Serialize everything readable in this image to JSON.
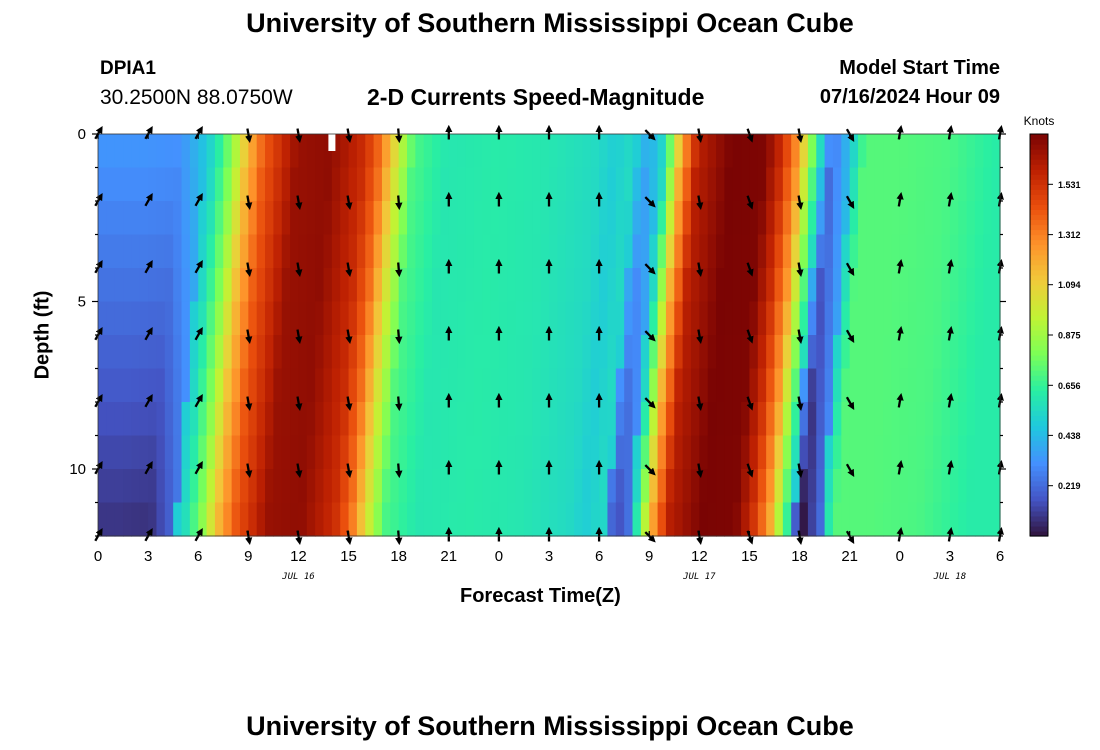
{
  "header": {
    "title": "University of Southern Mississippi Ocean Cube",
    "station_id": "DPIA1",
    "station_coords": "30.2500N  88.0750W",
    "subtitle": "2-D Currents Speed-Magnitude",
    "model_start_label": "Model Start Time",
    "model_start_value": "07/16/2024 Hour 09"
  },
  "footer": {
    "title": "University of Southern Mississippi Ocean Cube"
  },
  "chart_data": {
    "type": "heatmap",
    "title": "2-D Currents Speed-Magnitude",
    "xlabel": "Forecast Time(Z)",
    "ylabel": "Depth (ft)",
    "x_unit": "hours from 2024-07-16 00Z",
    "xlim": [
      0,
      54
    ],
    "ylim": [
      0,
      12
    ],
    "x_tick_values": [
      0,
      3,
      6,
      9,
      12,
      15,
      18,
      21,
      24,
      27,
      30,
      33,
      36,
      39,
      42,
      45,
      48,
      51,
      54
    ],
    "x_tick_labels": [
      "0",
      "3",
      "6",
      "9",
      "12",
      "15",
      "18",
      "21",
      "0",
      "3",
      "6",
      "9",
      "12",
      "15",
      "18",
      "21",
      "0",
      "3",
      "6"
    ],
    "date_labels": [
      {
        "x": 12,
        "text": "JUL 16"
      },
      {
        "x": 36,
        "text": "JUL 17"
      },
      {
        "x": 51,
        "text": "JUL 18"
      }
    ],
    "y_tick_values": [
      0,
      5,
      10
    ],
    "y_tick_labels": [
      "0",
      "5",
      "10"
    ],
    "colorbar": {
      "label": "Knots",
      "min": 0.0,
      "max": 1.75,
      "ticks": [
        0.219,
        0.438,
        0.656,
        0.875,
        1.094,
        1.312,
        1.531
      ],
      "tick_labels": [
        "0.219",
        "0.438",
        "0.656",
        "0.875",
        "1.094",
        "1.312",
        "1.531"
      ],
      "colors": [
        "#30123b",
        "#4454c4",
        "#4490fe",
        "#1fc8de",
        "#29efa2",
        "#7dff56",
        "#c1f334",
        "#f1ca3a",
        "#fe922a",
        "#ea4f0d",
        "#be2102",
        "#7a0403"
      ]
    },
    "speed_profile_hours": [
      0,
      3,
      5,
      6,
      7,
      8,
      9,
      10,
      12,
      14,
      16,
      17,
      18,
      19,
      21,
      24,
      27,
      30,
      31,
      32,
      33,
      34,
      35,
      36,
      38,
      40,
      41,
      42,
      43,
      44,
      45,
      46,
      48,
      51,
      54
    ],
    "speed_profile_surface_knots": [
      0.34,
      0.34,
      0.33,
      0.43,
      0.55,
      0.8,
      1.15,
      1.4,
      1.68,
      1.7,
      1.55,
      1.35,
      1.0,
      0.7,
      0.6,
      0.62,
      0.6,
      0.55,
      0.5,
      0.55,
      0.4,
      0.55,
      1.2,
      1.6,
      1.75,
      1.74,
      1.55,
      1.25,
      0.7,
      0.25,
      0.45,
      0.72,
      0.72,
      0.7,
      0.62
    ],
    "vector_times": [
      0,
      3,
      6,
      9,
      12,
      15,
      18,
      21,
      24,
      27,
      30,
      33,
      36,
      39,
      42,
      45,
      48,
      51,
      54
    ],
    "vector_depths": [
      0,
      2,
      4,
      6,
      8,
      10,
      12
    ],
    "vector_direction_deg": [
      30,
      30,
      30,
      170,
      170,
      170,
      175,
      0,
      0,
      0,
      0,
      135,
      170,
      160,
      170,
      150,
      10,
      10,
      10
    ],
    "annotation": {
      "type": "white-marker",
      "x": 14,
      "y": 0
    }
  }
}
